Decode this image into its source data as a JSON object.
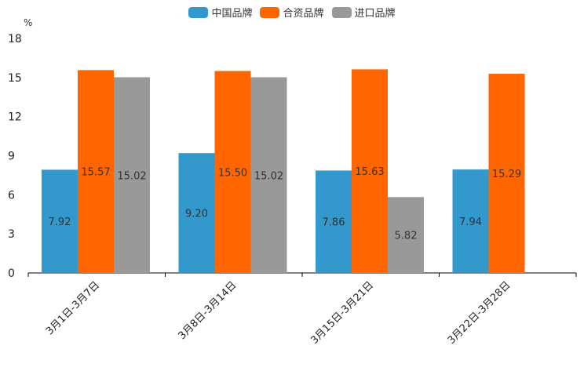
{
  "chart_data": {
    "type": "bar",
    "unit": "%",
    "categories": [
      "3月1日-3月7日",
      "3月8日-3月14日",
      "3月15日-3月21日",
      "3月22日-3月28日"
    ],
    "series": [
      {
        "name": "中国品牌",
        "color": "#3398cc",
        "values": [
          7.92,
          9.2,
          7.86,
          7.94
        ],
        "labels": [
          "7.92",
          "9.20",
          "7.86",
          "7.94"
        ]
      },
      {
        "name": "合资品牌",
        "color": "#ff6600",
        "values": [
          15.57,
          15.5,
          15.63,
          15.29
        ],
        "labels": [
          "15.57",
          "15.50",
          "15.63",
          "15.29"
        ]
      },
      {
        "name": "进口品牌",
        "color": "#999999",
        "values": [
          15.02,
          15.02,
          5.82,
          null
        ],
        "labels": [
          "15.02",
          "15.02",
          "5.82",
          null
        ]
      }
    ],
    "yticks": [
      0,
      3,
      6,
      9,
      12,
      15,
      18
    ],
    "ylim": [
      0,
      18
    ],
    "grid": false,
    "legend": "top-center"
  }
}
